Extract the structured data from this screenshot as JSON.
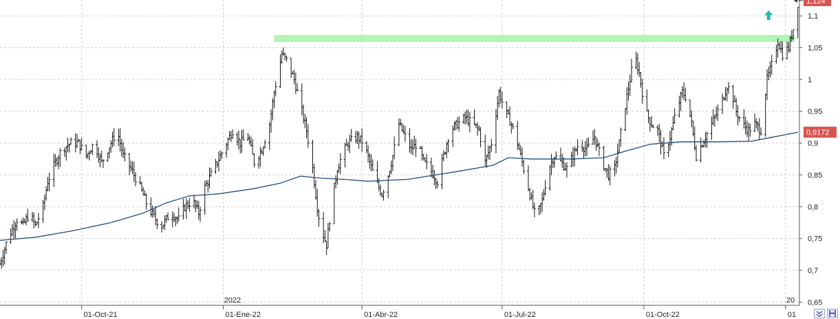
{
  "chart_data": {
    "type": "bar",
    "style": "ohlc",
    "ylim": [
      0.645,
      1.125
    ],
    "y_ticks": [
      0.65,
      0.7,
      0.75,
      0.8,
      0.85,
      0.9,
      0.95,
      1,
      1.05,
      1.1
    ],
    "y_tick_labels": [
      "0,65",
      "0,7",
      "0,75",
      "0,8",
      "0,85",
      "0,9",
      "0,95",
      "1",
      "1,05",
      "1,1"
    ],
    "x_range": [
      "2021-08-09",
      "2023-01-10"
    ],
    "x_ticks": [
      {
        "date": "2021-10-01",
        "label": "01-Oct-21"
      },
      {
        "date": "2022-01-01",
        "label": "01-Ene-22"
      },
      {
        "date": "2022-04-01",
        "label": "01-Abr-22"
      },
      {
        "date": "2022-07-01",
        "label": "01-Jul-22"
      },
      {
        "date": "2022-10-01",
        "label": "01-Oct-22"
      },
      {
        "date": "2023-01-01",
        "label": "01"
      }
    ],
    "year_markers": [
      {
        "date": "2022-01-01",
        "label": "2022"
      },
      {
        "date": "2023-01-01",
        "label": "20"
      }
    ],
    "grid": true,
    "price_path": [
      [
        "2021-08-09",
        0.71
      ],
      [
        "2021-08-14",
        0.75
      ],
      [
        "2021-08-20",
        0.78
      ],
      [
        "2021-08-24",
        0.77
      ],
      [
        "2021-08-28",
        0.79
      ],
      [
        "2021-09-01",
        0.77
      ],
      [
        "2021-09-06",
        0.8
      ],
      [
        "2021-09-09",
        0.84
      ],
      [
        "2021-09-14",
        0.87
      ],
      [
        "2021-09-18",
        0.89
      ],
      [
        "2021-09-24",
        0.9
      ],
      [
        "2021-09-29",
        0.9
      ],
      [
        "2021-10-04",
        0.88
      ],
      [
        "2021-10-09",
        0.9
      ],
      [
        "2021-10-14",
        0.87
      ],
      [
        "2021-10-20",
        0.9
      ],
      [
        "2021-10-24",
        0.92
      ],
      [
        "2021-10-28",
        0.88
      ],
      [
        "2021-11-02",
        0.86
      ],
      [
        "2021-11-08",
        0.83
      ],
      [
        "2021-11-13",
        0.8
      ],
      [
        "2021-11-18",
        0.78
      ],
      [
        "2021-11-22",
        0.77
      ],
      [
        "2021-11-28",
        0.79
      ],
      [
        "2021-12-03",
        0.78
      ],
      [
        "2021-12-07",
        0.8
      ],
      [
        "2021-12-12",
        0.81
      ],
      [
        "2021-12-16",
        0.79
      ],
      [
        "2021-12-20",
        0.83
      ],
      [
        "2021-12-24",
        0.85
      ],
      [
        "2021-12-28",
        0.87
      ],
      [
        "2022-01-03",
        0.9
      ],
      [
        "2022-01-07",
        0.92
      ],
      [
        "2022-01-12",
        0.9
      ],
      [
        "2022-01-17",
        0.91
      ],
      [
        "2022-01-21",
        0.87
      ],
      [
        "2022-01-26",
        0.89
      ],
      [
        "2022-01-31",
        0.93
      ],
      [
        "2022-02-03",
        0.98
      ],
      [
        "2022-02-08",
        1.04
      ],
      [
        "2022-02-11",
        1.03
      ],
      [
        "2022-02-16",
        1.0
      ],
      [
        "2022-02-20",
        0.96
      ],
      [
        "2022-02-24",
        0.92
      ],
      [
        "2022-02-28",
        0.86
      ],
      [
        "2022-03-03",
        0.8
      ],
      [
        "2022-03-05",
        0.77
      ],
      [
        "2022-03-09",
        0.74
      ],
      [
        "2022-03-12",
        0.8
      ],
      [
        "2022-03-16",
        0.86
      ],
      [
        "2022-03-19",
        0.88
      ],
      [
        "2022-03-23",
        0.9
      ],
      [
        "2022-03-29",
        0.91
      ],
      [
        "2022-04-02",
        0.9
      ],
      [
        "2022-04-06",
        0.87
      ],
      [
        "2022-04-10",
        0.84
      ],
      [
        "2022-04-14",
        0.82
      ],
      [
        "2022-04-18",
        0.85
      ],
      [
        "2022-04-21",
        0.88
      ],
      [
        "2022-04-25",
        0.93
      ],
      [
        "2022-04-29",
        0.91
      ],
      [
        "2022-05-03",
        0.89
      ],
      [
        "2022-05-07",
        0.9
      ],
      [
        "2022-05-11",
        0.87
      ],
      [
        "2022-05-15",
        0.86
      ],
      [
        "2022-05-20",
        0.84
      ],
      [
        "2022-05-24",
        0.88
      ],
      [
        "2022-05-28",
        0.92
      ],
      [
        "2022-06-02",
        0.93
      ],
      [
        "2022-06-07",
        0.94
      ],
      [
        "2022-06-12",
        0.93
      ],
      [
        "2022-06-16",
        0.92
      ],
      [
        "2022-06-20",
        0.87
      ],
      [
        "2022-06-24",
        0.9
      ],
      [
        "2022-06-29",
        0.98
      ],
      [
        "2022-07-03",
        0.95
      ],
      [
        "2022-07-07",
        0.93
      ],
      [
        "2022-07-11",
        0.9
      ],
      [
        "2022-07-15",
        0.86
      ],
      [
        "2022-07-19",
        0.82
      ],
      [
        "2022-07-23",
        0.78
      ],
      [
        "2022-07-27",
        0.81
      ],
      [
        "2022-07-31",
        0.86
      ],
      [
        "2022-08-04",
        0.88
      ],
      [
        "2022-08-08",
        0.87
      ],
      [
        "2022-08-12",
        0.86
      ],
      [
        "2022-08-16",
        0.88
      ],
      [
        "2022-08-20",
        0.9
      ],
      [
        "2022-08-25",
        0.89
      ],
      [
        "2022-08-30",
        0.91
      ],
      [
        "2022-09-04",
        0.87
      ],
      [
        "2022-09-08",
        0.85
      ],
      [
        "2022-09-12",
        0.86
      ],
      [
        "2022-09-15",
        0.9
      ],
      [
        "2022-09-19",
        0.96
      ],
      [
        "2022-09-22",
        1.0
      ],
      [
        "2022-09-25",
        1.04
      ],
      [
        "2022-09-28",
        1.01
      ],
      [
        "2022-10-02",
        0.95
      ],
      [
        "2022-10-06",
        0.93
      ],
      [
        "2022-10-10",
        0.92
      ],
      [
        "2022-10-14",
        0.88
      ],
      [
        "2022-10-18",
        0.91
      ],
      [
        "2022-10-22",
        0.95
      ],
      [
        "2022-10-26",
        0.98
      ],
      [
        "2022-10-29",
        0.97
      ],
      [
        "2022-11-01",
        0.93
      ],
      [
        "2022-11-04",
        0.88
      ],
      [
        "2022-11-08",
        0.9
      ],
      [
        "2022-11-12",
        0.92
      ],
      [
        "2022-11-16",
        0.94
      ],
      [
        "2022-11-20",
        0.96
      ],
      [
        "2022-11-24",
        0.99
      ],
      [
        "2022-11-27",
        0.98
      ],
      [
        "2022-11-30",
        0.95
      ],
      [
        "2022-12-04",
        0.93
      ],
      [
        "2022-12-08",
        0.92
      ],
      [
        "2022-12-12",
        0.93
      ],
      [
        "2022-12-16",
        0.92
      ],
      [
        "2022-12-20",
        1.0
      ],
      [
        "2022-12-24",
        1.03
      ],
      [
        "2022-12-27",
        1.06
      ],
      [
        "2022-12-30",
        1.04
      ],
      [
        "2023-01-03",
        1.05
      ],
      [
        "2023-01-06",
        1.08
      ],
      [
        "2023-01-09",
        1.12
      ]
    ],
    "moving_average": [
      [
        "2021-08-09",
        0.747
      ],
      [
        "2021-09-01",
        0.752
      ],
      [
        "2021-09-25",
        0.762
      ],
      [
        "2021-10-20",
        0.775
      ],
      [
        "2021-11-10",
        0.79
      ],
      [
        "2021-11-25",
        0.806
      ],
      [
        "2021-12-10",
        0.817
      ],
      [
        "2021-12-28",
        0.82
      ],
      [
        "2022-01-20",
        0.828
      ],
      [
        "2022-02-07",
        0.837
      ],
      [
        "2022-02-20",
        0.848
      ],
      [
        "2022-03-05",
        0.845
      ],
      [
        "2022-03-20",
        0.843
      ],
      [
        "2022-04-05",
        0.84
      ],
      [
        "2022-05-01",
        0.843
      ],
      [
        "2022-06-01",
        0.855
      ],
      [
        "2022-06-25",
        0.865
      ],
      [
        "2022-07-05",
        0.877
      ],
      [
        "2022-07-20",
        0.875
      ],
      [
        "2022-08-15",
        0.875
      ],
      [
        "2022-09-05",
        0.877
      ],
      [
        "2022-09-20",
        0.888
      ],
      [
        "2022-10-05",
        0.898
      ],
      [
        "2022-10-25",
        0.902
      ],
      [
        "2022-11-20",
        0.902
      ],
      [
        "2022-12-10",
        0.903
      ],
      [
        "2022-12-25",
        0.91
      ],
      [
        "2023-01-09",
        0.917
      ]
    ],
    "resistance_band": {
      "from": "2022-02-03",
      "to": "2023-01-07",
      "low": 1.059,
      "high": 1.07
    },
    "last_price": {
      "value": 1.124,
      "label": "1,124"
    },
    "ma_last": {
      "value": 0.9172,
      "label": "0,9172"
    },
    "signal": {
      "type": "up-arrow",
      "date": "2022-12-21",
      "value": 1.1
    }
  },
  "colors": {
    "bars": "#111111",
    "moving_average": "#1f4e79",
    "resistance_band": "#b3f5b3",
    "price_badge": "#d9534f",
    "grid": "#cfcfcf",
    "signal_arrow": "#26b8a6"
  },
  "controls": {
    "icons": [
      "collapse-arrows-icon",
      "save-disk-icon"
    ]
  }
}
